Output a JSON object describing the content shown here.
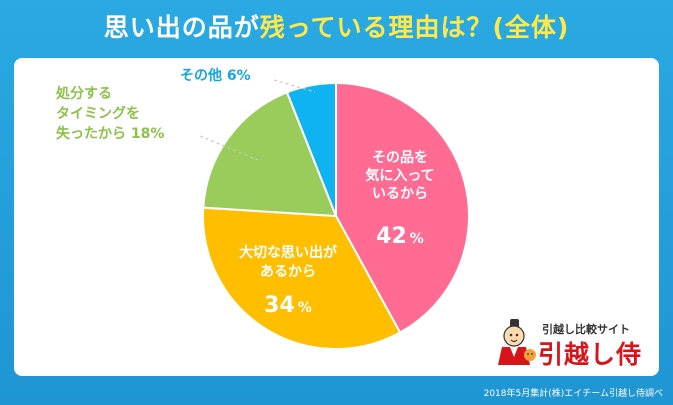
{
  "title": {
    "part1": "思い出の品が",
    "part2": "残っている理由は？(全体)"
  },
  "chart_data": {
    "type": "pie",
    "title": "思い出の品が残っている理由は？(全体)",
    "slices": [
      {
        "label_lines": [
          "その品を",
          "気に入って",
          "いるから"
        ],
        "value": 42,
        "color": "#ff6b93",
        "label_color": "#ffffff"
      },
      {
        "label_lines": [
          "大切な思い出が",
          "あるから"
        ],
        "value": 34,
        "color": "#ffbe00",
        "label_color": "#ffffff"
      },
      {
        "label_lines": [
          "処分する",
          "タイミングを",
          "失ったから 18%"
        ],
        "value": 18,
        "color": "#99cc5a",
        "label_color": "#8cc24a"
      },
      {
        "label_lines": [
          "その他 6%"
        ],
        "value": 6,
        "color": "#10b3f1",
        "label_color": "#13a8e4"
      }
    ],
    "start": "12 o'clock",
    "direction": "clockwise",
    "legend": "none"
  },
  "logo": {
    "sub": "引越し比較サイト",
    "main": "引越し侍"
  },
  "footer": "2018年5月集計(株)エイチーム引越し侍調べ"
}
